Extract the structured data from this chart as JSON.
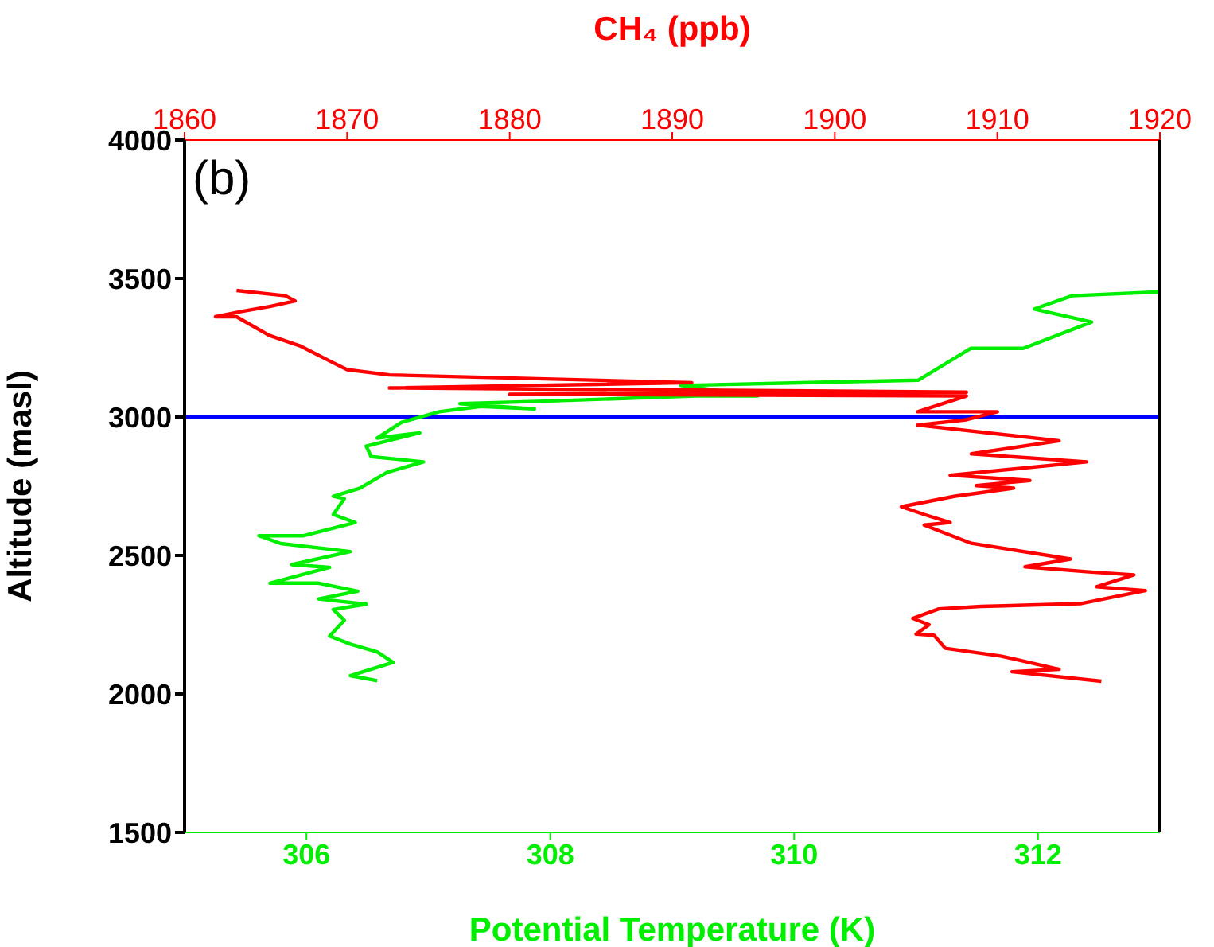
{
  "chart_data": {
    "type": "line",
    "xlabel": "Potential Temperature (K)",
    "x2label": "CH₄ (ppb)",
    "ylabel": "Altitude (masl)",
    "annotations": [
      "(b)"
    ],
    "xlim": [
      305,
      313
    ],
    "xticks": [
      306,
      308,
      310,
      312
    ],
    "x2lim": [
      1860,
      1920
    ],
    "x2ticks": [
      1860,
      1870,
      1880,
      1890,
      1900,
      1910,
      1920
    ],
    "ylim": [
      1500,
      4000
    ],
    "yticks": [
      1500,
      2000,
      2500,
      3000,
      3500,
      4000
    ],
    "ref_lines": [
      {
        "axis": "y",
        "value": 3000,
        "color": "#0000ff"
      }
    ],
    "series": [
      {
        "color": "#00ee00",
        "x": [
          306.58,
          306.36,
          306.71,
          306.58,
          306.36,
          306.19,
          306.31,
          306.22,
          306.49,
          306.1,
          306.42,
          306.1,
          305.7,
          306.19,
          305.88,
          306.36,
          305.79,
          305.61,
          305.97,
          306.4,
          306.22,
          306.31,
          306.22,
          306.44,
          306.66,
          306.96,
          306.53,
          306.49,
          306.93,
          306.58,
          306.78,
          307.09,
          307.43,
          307.87,
          307.26,
          307.95,
          309.19,
          309.7,
          309.07,
          311.02,
          311.45,
          311.88,
          312.44,
          311.97,
          312.28,
          313
        ],
        "values": [
          2048,
          2066,
          2114,
          2152,
          2180,
          2209,
          2266,
          2305,
          2324,
          2343,
          2371,
          2400,
          2400,
          2457,
          2467,
          2514,
          2543,
          2571,
          2571,
          2619,
          2648,
          2705,
          2714,
          2743,
          2800,
          2838,
          2857,
          2895,
          2943,
          2924,
          2981,
          3019,
          3038,
          3029,
          3048,
          3057,
          3076,
          3076,
          3114,
          3133,
          3248,
          3248,
          3343,
          3390,
          3438,
          3452
        ]
      },
      {
        "color": "#ff0000",
        "axis": "x2",
        "x": [
          1916.4,
          1910.9,
          1913.8,
          1910.2,
          1906.8,
          1906.1,
          1905,
          1905.8,
          1904.8,
          1906.4,
          1909,
          1915.1,
          1919.1,
          1916.1,
          1918.4,
          1915.8,
          1911.7,
          1914.5,
          1908.4,
          1905.5,
          1907.1,
          1905.5,
          1904.1,
          1907.4,
          1911,
          1908.7,
          1912,
          1907.1,
          1915.5,
          1908.4,
          1913.8,
          1905.1,
          1908.1,
          1910,
          1905.1,
          1908.1,
          1880,
          1908.1,
          1872.6,
          1891.2,
          1872.6,
          1870,
          1869,
          1867.1,
          1865.2,
          1863.2,
          1861.9,
          1863.5,
          1865.3,
          1866.8,
          1866.2,
          1863.2
        ],
        "values": [
          2046,
          2080,
          2089,
          2137,
          2165,
          2212,
          2216,
          2250,
          2273,
          2307,
          2316,
          2326,
          2373,
          2387,
          2430,
          2440,
          2459,
          2487,
          2544,
          2610,
          2619,
          2648,
          2676,
          2714,
          2743,
          2752,
          2771,
          2790,
          2838,
          2867,
          2914,
          2971,
          2990,
          3019,
          3019,
          3076,
          3082,
          3090,
          3105,
          3124,
          3152,
          3171,
          3200,
          3257,
          3295,
          3362,
          3362,
          3381,
          3400,
          3419,
          3438,
          3457
        ]
      }
    ]
  }
}
